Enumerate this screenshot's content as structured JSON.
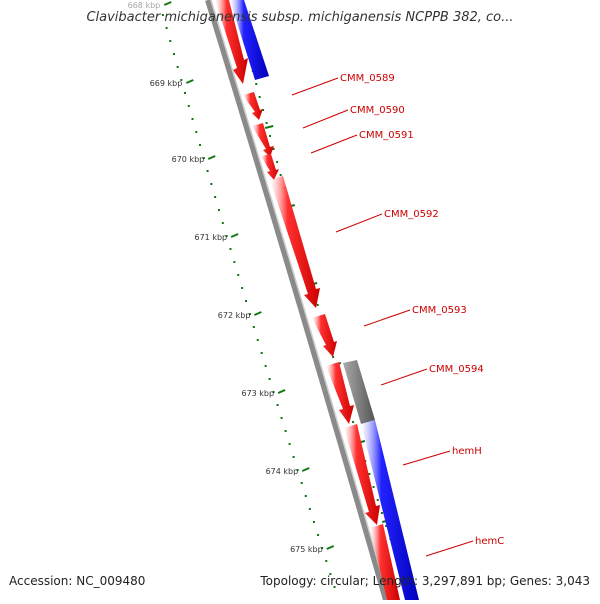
{
  "title": "Clavibacter michiganensis subsp. michiganensis NCPPB 382, co...",
  "ruler": {
    "unit_suffix": "kbp",
    "labels": [
      "668 kbp",
      "669 kbp",
      "670 kbp",
      "671 kbp",
      "672 kbp",
      "673 kbp",
      "674 kbp",
      "675 kbp"
    ]
  },
  "genes": [
    {
      "name": "CMM_0589"
    },
    {
      "name": "CMM_0590"
    },
    {
      "name": "CMM_0591"
    },
    {
      "name": "CMM_0592"
    },
    {
      "name": "CMM_0593"
    },
    {
      "name": "CMM_0594"
    },
    {
      "name": "hemH"
    },
    {
      "name": "hemC"
    }
  ],
  "colors": {
    "forward_gene": "#ff0000",
    "reverse_gene": "#0000ff",
    "other_feature": "#666666",
    "backbone": "#888888",
    "ruler_ticks": "#117711",
    "gene_label": "#cc0000"
  },
  "footer": {
    "accession": "Accession: NC_009480",
    "stats": "Topology: circular; Length: 3,297,891 bp; Genes: 3,043"
  }
}
